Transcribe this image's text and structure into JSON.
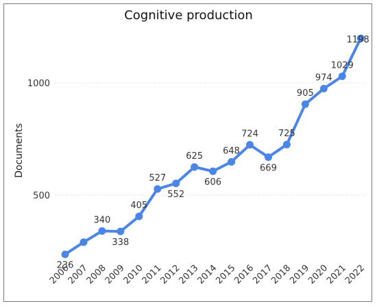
{
  "chart_data": {
    "type": "line",
    "title": "Cognitive production",
    "xlabel": "",
    "ylabel": "Documents",
    "x": [
      "2006",
      "2007",
      "2008",
      "2009",
      "2010",
      "2011",
      "2012",
      "2013",
      "2014",
      "2015",
      "2016",
      "2017",
      "2018",
      "2019",
      "2020",
      "2021",
      "2022"
    ],
    "values": [
      236,
      290,
      340,
      338,
      405,
      527,
      552,
      625,
      606,
      648,
      724,
      669,
      725,
      905,
      974,
      1029,
      1198
    ],
    "data_labels": [
      "236",
      "",
      "340",
      "338",
      "405",
      "527",
      "552",
      "625",
      "606",
      "648",
      "724",
      "669",
      "725",
      "905",
      "974",
      "1029",
      "1198"
    ],
    "y_ticks": [
      500,
      1000
    ],
    "ylim": [
      200,
      1200
    ],
    "grid": true,
    "line_color": "#4a86e8"
  }
}
